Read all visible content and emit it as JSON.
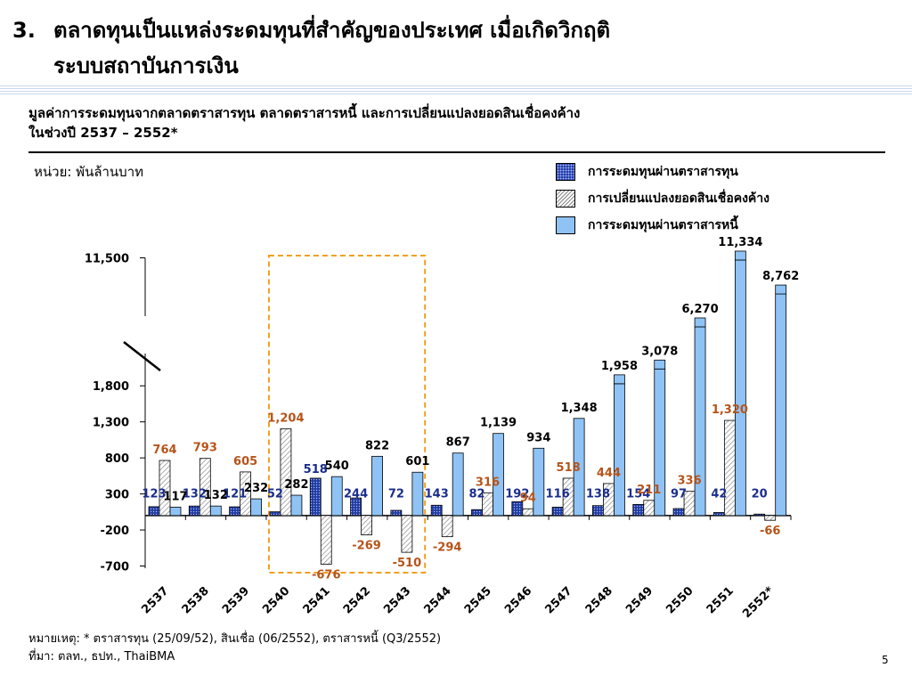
{
  "slide": {
    "number": "3.",
    "title_line1": "ตลาดทุนเป็นแหล่งระดมทุนที่สำคัญของประเทศ เมื่อเกิดวิกฤติ",
    "title_line2": "ระบบสถาบันการเงิน",
    "subtitle_line1": "มูลค่าการระดมทุนจากตลาดตราสารทุน ตลาดตราสารหนี้ และการเปลี่ยนแปลงยอดสินเชื่อคงค้าง",
    "subtitle_line2": "ในช่วงปี 2537 – 2552*",
    "unit_label": "หน่วย: พันล้านบาท",
    "footnote_line1": "หมายเหตุ: * ตราสารทุน (25/09/52), สินเชื่อ (06/2552), ตราสารหนี้ (Q3/2552)",
    "footnote_line2": "ที่มา: ตลท., ธปท., ThaiBMA",
    "page_number": "5"
  },
  "colors": {
    "equity": "#1f3aa0",
    "credit_hatch": "#888888",
    "bond": "#8fc3f5",
    "equity_label": "#1a2d8c",
    "credit_label": "#b5541a",
    "bond_label": "#000000",
    "highlight_box": "#f0a020"
  },
  "chart_data": {
    "type": "bar",
    "categories": [
      "2537",
      "2538",
      "2539",
      "2540",
      "2541",
      "2542",
      "2543",
      "2544",
      "2545",
      "2546",
      "2547",
      "2548",
      "2549",
      "2550",
      "2551",
      "2552*"
    ],
    "series": [
      {
        "name": "การระดมทุนผ่านตราสารทุน",
        "values": [
          123,
          132,
          121,
          52,
          518,
          244,
          72,
          143,
          82,
          192,
          116,
          138,
          154,
          97,
          42,
          20
        ]
      },
      {
        "name": "การเปลี่ยนแปลงยอดสินเชื่อคงค้าง",
        "values": [
          764,
          793,
          605,
          1204,
          -676,
          -269,
          -510,
          -294,
          316,
          94,
          518,
          444,
          211,
          336,
          1320,
          -66
        ]
      },
      {
        "name": "การระดมทุนผ่านตราสารหนี้",
        "values": [
          117,
          132,
          232,
          282,
          540,
          822,
          601,
          867,
          1139,
          934,
          1348,
          1958,
          3078,
          6270,
          11334,
          8762
        ]
      }
    ],
    "y_ticks": [
      "11,500",
      "1,800",
      "1,300",
      "800",
      "300",
      "-200",
      "-700"
    ],
    "ylim": [
      -700,
      11500
    ],
    "y_axis_break": true,
    "highlight_years": [
      "2540",
      "2541",
      "2542",
      "2543"
    ],
    "data_labels": {
      "equity": [
        "123",
        "132",
        "121",
        "52",
        "518",
        "244",
        "72",
        "143",
        "82",
        "192",
        "116",
        "138",
        "154",
        "97",
        "42",
        "20"
      ],
      "credit": [
        "764",
        "793",
        "605",
        "1,204",
        "-676",
        "-269",
        "-510",
        "-294",
        "316",
        "94",
        "518",
        "444",
        "211",
        "336",
        "1,320",
        "-66"
      ],
      "bond": [
        "117",
        "132",
        "232",
        "282",
        "540",
        "822",
        "601",
        "867",
        "1,139",
        "934",
        "1,348",
        "1,958",
        "3,078",
        "6,270",
        "11,334",
        "8,762"
      ]
    }
  }
}
